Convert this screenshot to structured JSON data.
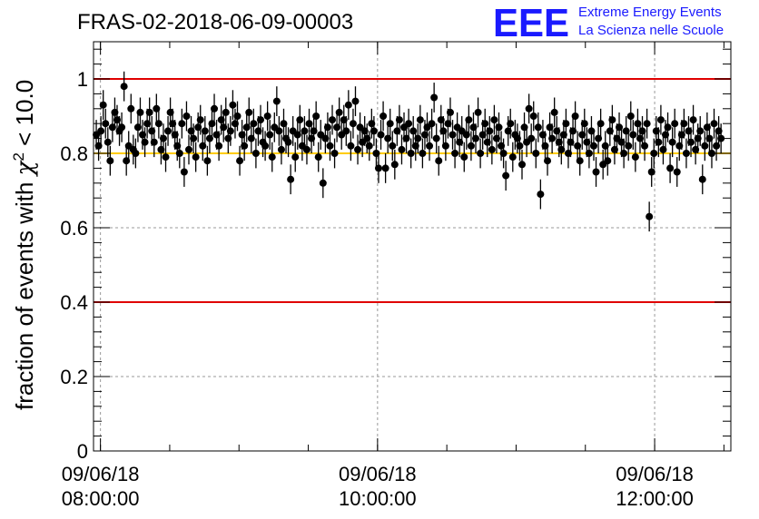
{
  "chart_data": {
    "type": "scatter",
    "title": "FRAS-02-2018-06-09-00003",
    "ylabel_prefix": "fraction of events with ",
    "ylabel_symbol": "χ",
    "ylabel_exponent": "2",
    "ylabel_suffix": " < 10.0",
    "xlabel": "",
    "ylim": [
      0,
      1.1
    ],
    "xlim_hours": [
      7.95,
      12.55
    ],
    "y_ticks": [
      "0",
      "0.2",
      "0.4",
      "0.6",
      "0.8",
      "1"
    ],
    "y_tick_values": [
      0,
      0.2,
      0.4,
      0.6,
      0.8,
      1.0
    ],
    "x_ticks": [
      {
        "hour": 8,
        "date": "09/06/18",
        "time": "08:00:00"
      },
      {
        "hour": 10,
        "date": "09/06/18",
        "time": "10:00:00"
      },
      {
        "hour": 12,
        "date": "09/06/18",
        "time": "12:00:00"
      }
    ],
    "grid": true,
    "reference_lines": [
      {
        "y": 1.0,
        "color": "#e00000"
      },
      {
        "y": 0.8,
        "color": "#ffcc00"
      },
      {
        "y": 0.4,
        "color": "#e00000"
      }
    ],
    "marker_color": "#000000",
    "error_bar_half_height": 0.04,
    "x_start_hour": 7.97,
    "x_step_hour": 0.0167,
    "values": [
      0.85,
      0.82,
      0.86,
      0.93,
      0.88,
      0.83,
      0.78,
      0.87,
      0.91,
      0.89,
      0.86,
      0.87,
      0.98,
      0.78,
      0.82,
      0.92,
      0.81,
      0.8,
      0.87,
      0.91,
      0.85,
      0.83,
      0.88,
      0.91,
      0.86,
      0.83,
      0.92,
      0.88,
      0.81,
      0.84,
      0.79,
      0.86,
      0.91,
      0.88,
      0.85,
      0.82,
      0.8,
      0.88,
      0.75,
      0.9,
      0.81,
      0.86,
      0.84,
      0.79,
      0.87,
      0.89,
      0.82,
      0.86,
      0.78,
      0.84,
      0.88,
      0.92,
      0.85,
      0.82,
      0.89,
      0.87,
      0.91,
      0.84,
      0.86,
      0.93,
      0.88,
      0.9,
      0.78,
      0.85,
      0.82,
      0.87,
      0.91,
      0.84,
      0.88,
      0.8,
      0.86,
      0.89,
      0.83,
      0.82,
      0.9,
      0.85,
      0.79,
      0.87,
      0.94,
      0.86,
      0.81,
      0.88,
      0.84,
      0.83,
      0.73,
      0.86,
      0.79,
      0.85,
      0.89,
      0.82,
      0.86,
      0.81,
      0.88,
      0.84,
      0.86,
      0.9,
      0.79,
      0.85,
      0.72,
      0.84,
      0.87,
      0.82,
      0.89,
      0.8,
      0.87,
      0.91,
      0.85,
      0.89,
      0.86,
      0.93,
      0.82,
      0.88,
      0.94,
      0.81,
      0.87,
      0.83,
      0.86,
      0.84,
      0.82,
      0.88,
      0.86,
      0.8,
      0.76,
      0.85,
      0.9,
      0.76,
      0.84,
      0.88,
      0.82,
      0.77,
      0.86,
      0.89,
      0.81,
      0.87,
      0.84,
      0.88,
      0.8,
      0.86,
      0.82,
      0.84,
      0.89,
      0.8,
      0.85,
      0.87,
      0.82,
      0.88,
      0.95,
      0.84,
      0.78,
      0.89,
      0.86,
      0.82,
      0.88,
      0.91,
      0.85,
      0.8,
      0.87,
      0.83,
      0.86,
      0.79,
      0.85,
      0.89,
      0.82,
      0.87,
      0.84,
      0.91,
      0.8,
      0.85,
      0.88,
      0.83,
      0.86,
      0.81,
      0.89,
      0.84,
      0.87,
      0.82,
      0.8,
      0.74,
      0.86,
      0.88,
      0.79,
      0.85,
      0.84,
      0.82,
      0.77,
      0.87,
      0.83,
      0.92,
      0.84,
      0.9,
      0.8,
      0.87,
      0.69,
      0.85,
      0.82,
      0.78,
      0.87,
      0.84,
      0.91,
      0.86,
      0.83,
      0.81,
      0.85,
      0.88,
      0.8,
      0.83,
      0.86,
      0.9,
      0.82,
      0.78,
      0.85,
      0.88,
      0.83,
      0.8,
      0.86,
      0.82,
      0.75,
      0.84,
      0.88,
      0.77,
      0.82,
      0.78,
      0.86,
      0.89,
      0.81,
      0.84,
      0.87,
      0.83,
      0.8,
      0.86,
      0.82,
      0.9,
      0.85,
      0.79,
      0.88,
      0.84,
      0.86,
      0.82,
      0.88,
      0.63,
      0.75,
      0.8,
      0.86,
      0.83,
      0.89,
      0.81,
      0.85,
      0.87,
      0.76,
      0.83,
      0.88,
      0.75,
      0.82,
      0.85,
      0.88,
      0.8,
      0.86,
      0.83,
      0.89,
      0.81,
      0.84,
      0.86,
      0.73,
      0.82,
      0.87,
      0.84,
      0.8,
      0.88,
      0.82,
      0.86,
      0.84
    ]
  },
  "logo": {
    "big": "EEE",
    "line1": "Extreme Energy Events",
    "line2": "La Scienza nelle Scuole"
  }
}
